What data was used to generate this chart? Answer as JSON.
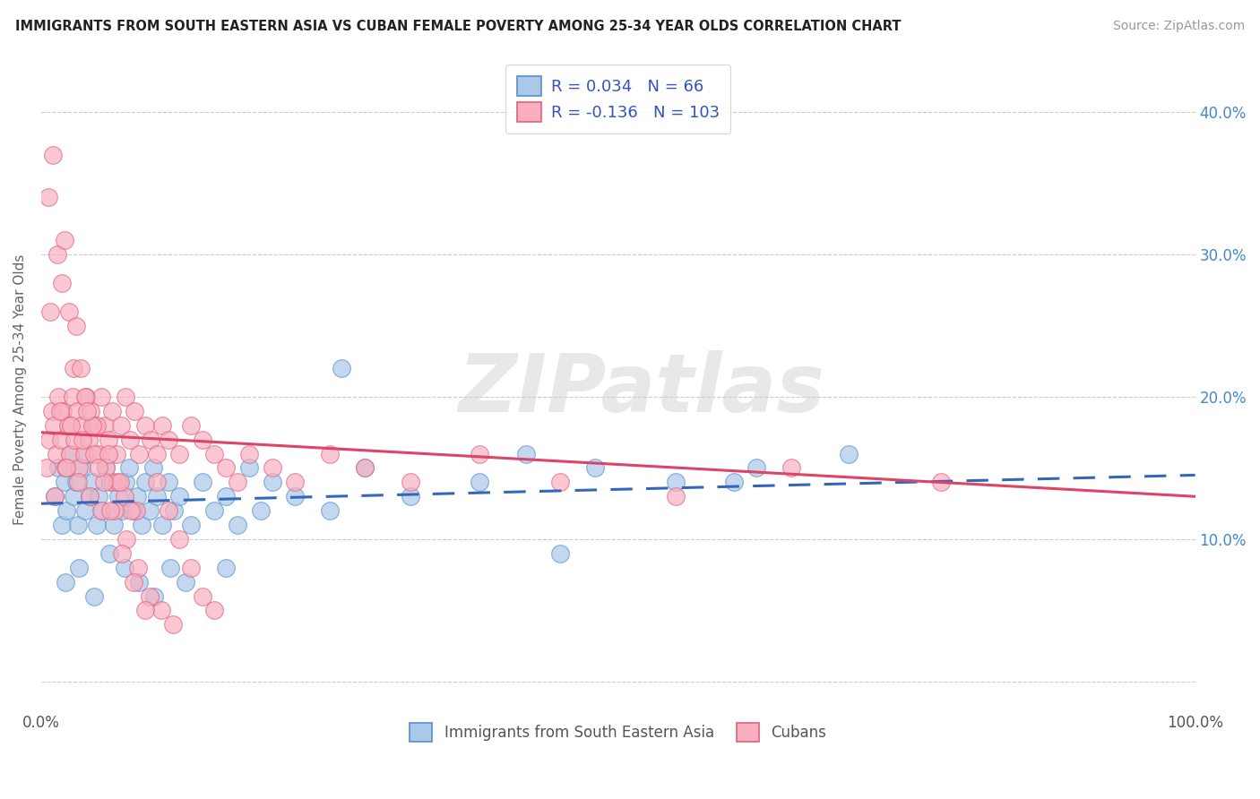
{
  "title": "IMMIGRANTS FROM SOUTH EASTERN ASIA VS CUBAN FEMALE POVERTY AMONG 25-34 YEAR OLDS CORRELATION CHART",
  "source": "Source: ZipAtlas.com",
  "ylabel": "Female Poverty Among 25-34 Year Olds",
  "xlim": [
    0,
    100
  ],
  "ylim": [
    -2,
    43
  ],
  "yticks": [
    0,
    10,
    20,
    30,
    40
  ],
  "right_ytick_labels": [
    "",
    "10.0%",
    "20.0%",
    "30.0%",
    "40.0%"
  ],
  "xtick_labels": [
    "0.0%",
    "100.0%"
  ],
  "blue_R": 0.034,
  "blue_N": 66,
  "pink_R": -0.136,
  "pink_N": 103,
  "blue_face": "#aac8e8",
  "blue_edge": "#5590cc",
  "pink_face": "#f8b0c0",
  "pink_edge": "#e06080",
  "blue_line": "#3366bb",
  "pink_line": "#dd4466",
  "accent_blue": "#3355bb",
  "watermark": "ZIPatlas",
  "legend_label_blue": "Immigrants from South Eastern Asia",
  "legend_label_pink": "Cubans",
  "blue_x": [
    1.2,
    1.5,
    1.8,
    2.0,
    2.2,
    2.5,
    2.8,
    3.0,
    3.2,
    3.5,
    3.8,
    4.0,
    4.2,
    4.5,
    4.8,
    5.0,
    5.3,
    5.6,
    6.0,
    6.3,
    6.7,
    7.0,
    7.3,
    7.6,
    8.0,
    8.3,
    8.7,
    9.0,
    9.4,
    9.7,
    10.0,
    10.5,
    11.0,
    11.5,
    12.0,
    13.0,
    14.0,
    15.0,
    16.0,
    17.0,
    18.0,
    19.0,
    20.0,
    22.0,
    25.0,
    28.0,
    32.0,
    38.0,
    42.0,
    48.0,
    55.0,
    62.0,
    70.0,
    2.1,
    3.3,
    4.6,
    5.9,
    7.2,
    8.5,
    9.8,
    11.2,
    12.5,
    16.0,
    26.0,
    45.0,
    60.0
  ],
  "blue_y": [
    13.0,
    15.0,
    11.0,
    14.0,
    12.0,
    16.0,
    13.0,
    14.0,
    11.0,
    15.0,
    12.0,
    16.0,
    13.0,
    14.0,
    11.0,
    13.0,
    12.0,
    15.0,
    14.0,
    11.0,
    13.0,
    12.0,
    14.0,
    15.0,
    12.0,
    13.0,
    11.0,
    14.0,
    12.0,
    15.0,
    13.0,
    11.0,
    14.0,
    12.0,
    13.0,
    11.0,
    14.0,
    12.0,
    13.0,
    11.0,
    15.0,
    12.0,
    14.0,
    13.0,
    12.0,
    15.0,
    13.0,
    14.0,
    16.0,
    15.0,
    14.0,
    15.0,
    16.0,
    7.0,
    8.0,
    6.0,
    9.0,
    8.0,
    7.0,
    6.0,
    8.0,
    7.0,
    8.0,
    22.0,
    9.0,
    14.0
  ],
  "pink_x": [
    0.5,
    0.7,
    0.9,
    1.1,
    1.3,
    1.5,
    1.7,
    1.9,
    2.1,
    2.3,
    2.5,
    2.7,
    2.9,
    3.1,
    3.3,
    3.5,
    3.7,
    3.9,
    4.1,
    4.3,
    4.6,
    4.9,
    5.2,
    5.5,
    5.8,
    6.1,
    6.5,
    6.9,
    7.3,
    7.7,
    8.1,
    8.5,
    9.0,
    9.5,
    10.0,
    10.5,
    11.0,
    12.0,
    13.0,
    14.0,
    15.0,
    16.0,
    17.0,
    18.0,
    20.0,
    22.0,
    25.0,
    28.0,
    32.0,
    38.0,
    45.0,
    55.0,
    65.0,
    78.0,
    1.2,
    2.2,
    3.2,
    4.2,
    5.2,
    6.2,
    7.2,
    8.2,
    1.6,
    2.6,
    3.6,
    4.6,
    5.6,
    6.6,
    0.8,
    1.8,
    2.8,
    3.8,
    4.8,
    5.8,
    6.8,
    7.8,
    0.6,
    1.4,
    2.4,
    3.4,
    4.4,
    5.4,
    6.4,
    7.4,
    8.4,
    9.4,
    10.4,
    11.4,
    1.0,
    2.0,
    3.0,
    4.0,
    5.0,
    6.0,
    7.0,
    8.0,
    9.0,
    10.0,
    11.0,
    12.0,
    13.0,
    14.0,
    15.0
  ],
  "pink_y": [
    15.0,
    17.0,
    19.0,
    18.0,
    16.0,
    20.0,
    17.0,
    19.0,
    15.0,
    18.0,
    16.0,
    20.0,
    17.0,
    19.0,
    15.0,
    18.0,
    16.0,
    20.0,
    17.0,
    19.0,
    18.0,
    16.0,
    20.0,
    18.0,
    17.0,
    19.0,
    16.0,
    18.0,
    20.0,
    17.0,
    19.0,
    16.0,
    18.0,
    17.0,
    16.0,
    18.0,
    17.0,
    16.0,
    18.0,
    17.0,
    16.0,
    15.0,
    14.0,
    16.0,
    15.0,
    14.0,
    16.0,
    15.0,
    14.0,
    16.0,
    14.0,
    13.0,
    15.0,
    14.0,
    13.0,
    15.0,
    14.0,
    13.0,
    12.0,
    14.0,
    13.0,
    12.0,
    19.0,
    18.0,
    17.0,
    16.0,
    15.0,
    14.0,
    26.0,
    28.0,
    22.0,
    20.0,
    18.0,
    16.0,
    14.0,
    12.0,
    34.0,
    30.0,
    26.0,
    22.0,
    18.0,
    14.0,
    12.0,
    10.0,
    8.0,
    6.0,
    5.0,
    4.0,
    37.0,
    31.0,
    25.0,
    19.0,
    15.0,
    12.0,
    9.0,
    7.0,
    5.0,
    14.0,
    12.0,
    10.0,
    8.0,
    6.0,
    5.0
  ]
}
